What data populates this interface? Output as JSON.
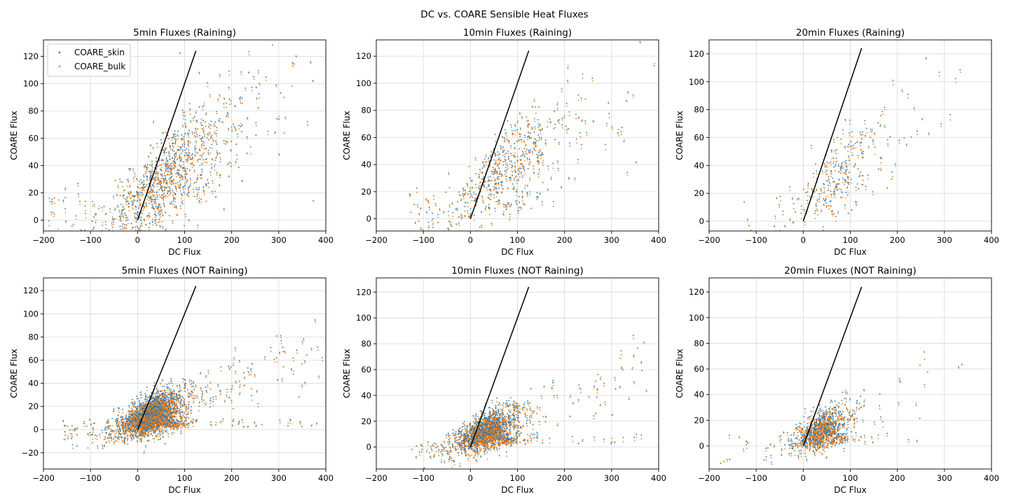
{
  "figure": {
    "suptitle": "DC vs. COARE Sensible Heat Fluxes"
  },
  "colors": {
    "skin": "#1f77b4",
    "bulk": "#ff7f0e",
    "line": "#000000",
    "grid": "#d8d8d8"
  },
  "chart_data": [
    {
      "type": "scatter",
      "title": "5min Fluxes (Raining)",
      "xlabel": "DC Flux",
      "ylabel": "COARE Flux",
      "xlim": [
        -200,
        400
      ],
      "ylim": [
        -8,
        132
      ],
      "xticks": [
        -200,
        -100,
        0,
        100,
        200,
        300,
        400
      ],
      "yticks": [
        0,
        20,
        40,
        60,
        80,
        100,
        120
      ],
      "grid": true,
      "legend": "upper-left",
      "series": [
        {
          "name": "COARE_skin"
        },
        {
          "name": "COARE_bulk"
        }
      ],
      "reference_line": {
        "x": [
          0,
          124
        ],
        "y": [
          0,
          124
        ]
      },
      "cloud": {
        "n": 900,
        "x_mode": 60,
        "x_spread": 95,
        "x_min": -190,
        "x_max": 395,
        "slope": 0.27,
        "intercept": 14,
        "noise": 13,
        "tail": 0.12
      }
    },
    {
      "type": "scatter",
      "title": "10min Fluxes (Raining)",
      "xlabel": "DC Flux",
      "ylabel": "COARE Flux",
      "xlim": [
        -200,
        400
      ],
      "ylim": [
        -9,
        132
      ],
      "xticks": [
        -200,
        -100,
        0,
        100,
        200,
        300,
        400
      ],
      "yticks": [
        0,
        20,
        40,
        60,
        80,
        100,
        120
      ],
      "grid": true,
      "reference_line": {
        "x": [
          0,
          124
        ],
        "y": [
          0,
          124
        ]
      },
      "cloud": {
        "n": 520,
        "x_mode": 70,
        "x_spread": 90,
        "x_min": -140,
        "x_max": 395,
        "slope": 0.24,
        "intercept": 16,
        "noise": 12,
        "tail": 0.1
      }
    },
    {
      "type": "scatter",
      "title": "20min Fluxes (Raining)",
      "xlabel": "DC Flux",
      "ylabel": "COARE Flux",
      "xlim": [
        -200,
        400
      ],
      "ylim": [
        -7,
        130
      ],
      "xticks": [
        -200,
        -100,
        0,
        100,
        200,
        300,
        400
      ],
      "yticks": [
        0,
        20,
        40,
        60,
        80,
        100,
        120
      ],
      "grid": true,
      "reference_line": {
        "x": [
          0,
          124
        ],
        "y": [
          0,
          124
        ]
      },
      "cloud": {
        "n": 260,
        "x_mode": 75,
        "x_spread": 80,
        "x_min": -160,
        "x_max": 355,
        "slope": 0.25,
        "intercept": 13,
        "noise": 11,
        "tail": 0.08
      }
    },
    {
      "type": "scatter",
      "title": "5min Fluxes (NOT Raining)",
      "xlabel": "DC Flux",
      "ylabel": "COARE Flux",
      "xlim": [
        -200,
        400
      ],
      "ylim": [
        -34,
        131
      ],
      "xticks": [
        -200,
        -100,
        0,
        100,
        200,
        300,
        400
      ],
      "yticks": [
        -20,
        0,
        20,
        40,
        60,
        80,
        100,
        120
      ],
      "grid": true,
      "reference_line": {
        "x": [
          0,
          124
        ],
        "y": [
          0,
          124
        ]
      },
      "cloud": {
        "n": 2400,
        "x_mode": 30,
        "x_spread": 45,
        "x_min": -160,
        "x_max": 395,
        "slope": 0.16,
        "intercept": 7,
        "noise": 7,
        "tail": 0.08
      }
    },
    {
      "type": "scatter",
      "title": "10min Fluxes (NOT Raining)",
      "xlabel": "DC Flux",
      "ylabel": "COARE Flux",
      "xlim": [
        -200,
        400
      ],
      "ylim": [
        -17,
        131
      ],
      "xticks": [
        -200,
        -100,
        0,
        100,
        200,
        300,
        400
      ],
      "yticks": [
        0,
        20,
        40,
        60,
        80,
        100,
        120
      ],
      "grid": true,
      "reference_line": {
        "x": [
          0,
          124
        ],
        "y": [
          0,
          124
        ]
      },
      "cloud": {
        "n": 1600,
        "x_mode": 35,
        "x_spread": 45,
        "x_min": -125,
        "x_max": 380,
        "slope": 0.15,
        "intercept": 6,
        "noise": 6,
        "tail": 0.08
      }
    },
    {
      "type": "scatter",
      "title": "20min Fluxes (NOT Raining)",
      "xlabel": "DC Flux",
      "ylabel": "COARE Flux",
      "xlim": [
        -200,
        400
      ],
      "ylim": [
        -18,
        131
      ],
      "xticks": [
        -200,
        -100,
        0,
        100,
        200,
        300,
        400
      ],
      "yticks": [
        0,
        20,
        40,
        60,
        80,
        100,
        120
      ],
      "grid": true,
      "reference_line": {
        "x": [
          0,
          124
        ],
        "y": [
          0,
          124
        ]
      },
      "cloud": {
        "n": 900,
        "x_mode": 40,
        "x_spread": 40,
        "x_min": -200,
        "x_max": 340,
        "slope": 0.17,
        "intercept": 5,
        "noise": 6,
        "tail": 0.07
      }
    }
  ]
}
